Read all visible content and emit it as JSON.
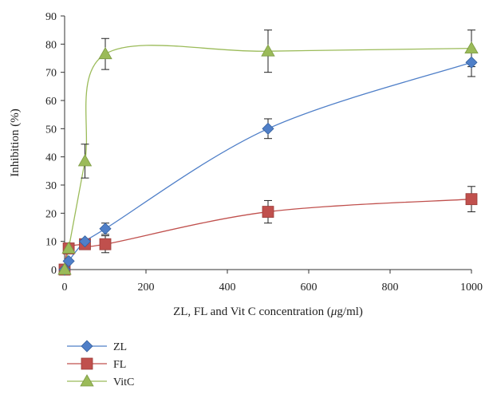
{
  "chart_data": {
    "type": "line",
    "xlabel_parts": [
      "ZL, FL and Vit C concentration (",
      "μ",
      "g/ml)"
    ],
    "ylabel": "Inhibition (%)",
    "xlim": [
      0,
      1000
    ],
    "ylim": [
      0,
      90
    ],
    "x_ticks": [
      0,
      200,
      400,
      600,
      800,
      1000
    ],
    "y_ticks": [
      0,
      10,
      20,
      30,
      40,
      50,
      60,
      70,
      80,
      90
    ],
    "grid": false,
    "legend_position": "bottom-left, below plot",
    "series": [
      {
        "name": "ZL",
        "color": "#4F7FC8",
        "marker": "diamond",
        "points": [
          {
            "x": 0,
            "y": 0,
            "err": 0
          },
          {
            "x": 10,
            "y": 3,
            "err": 0
          },
          {
            "x": 50,
            "y": 10,
            "err": 0
          },
          {
            "x": 100,
            "y": 14.5,
            "err": 2
          },
          {
            "x": 500,
            "y": 50,
            "err": 3.5
          },
          {
            "x": 1000,
            "y": 73.5,
            "err": 5
          }
        ]
      },
      {
        "name": "FL",
        "color": "#C0504D",
        "marker": "square",
        "points": [
          {
            "x": 0,
            "y": 0,
            "err": 0
          },
          {
            "x": 10,
            "y": 7.5,
            "err": 0
          },
          {
            "x": 50,
            "y": 9,
            "err": 0
          },
          {
            "x": 100,
            "y": 9,
            "err": 3
          },
          {
            "x": 500,
            "y": 20.5,
            "err": 4
          },
          {
            "x": 1000,
            "y": 25,
            "err": 4.5
          }
        ]
      },
      {
        "name": "VitC",
        "color": "#9BBB59",
        "marker": "triangle",
        "points": [
          {
            "x": 0,
            "y": 0,
            "err": 0
          },
          {
            "x": 10,
            "y": 7.5,
            "err": 0
          },
          {
            "x": 50,
            "y": 38.5,
            "err": 6
          },
          {
            "x": 100,
            "y": 76.5,
            "err": 5.5
          },
          {
            "x": 500,
            "y": 77.5,
            "err": 7.5
          },
          {
            "x": 1000,
            "y": 78.5,
            "err": 6.5
          }
        ]
      }
    ]
  }
}
